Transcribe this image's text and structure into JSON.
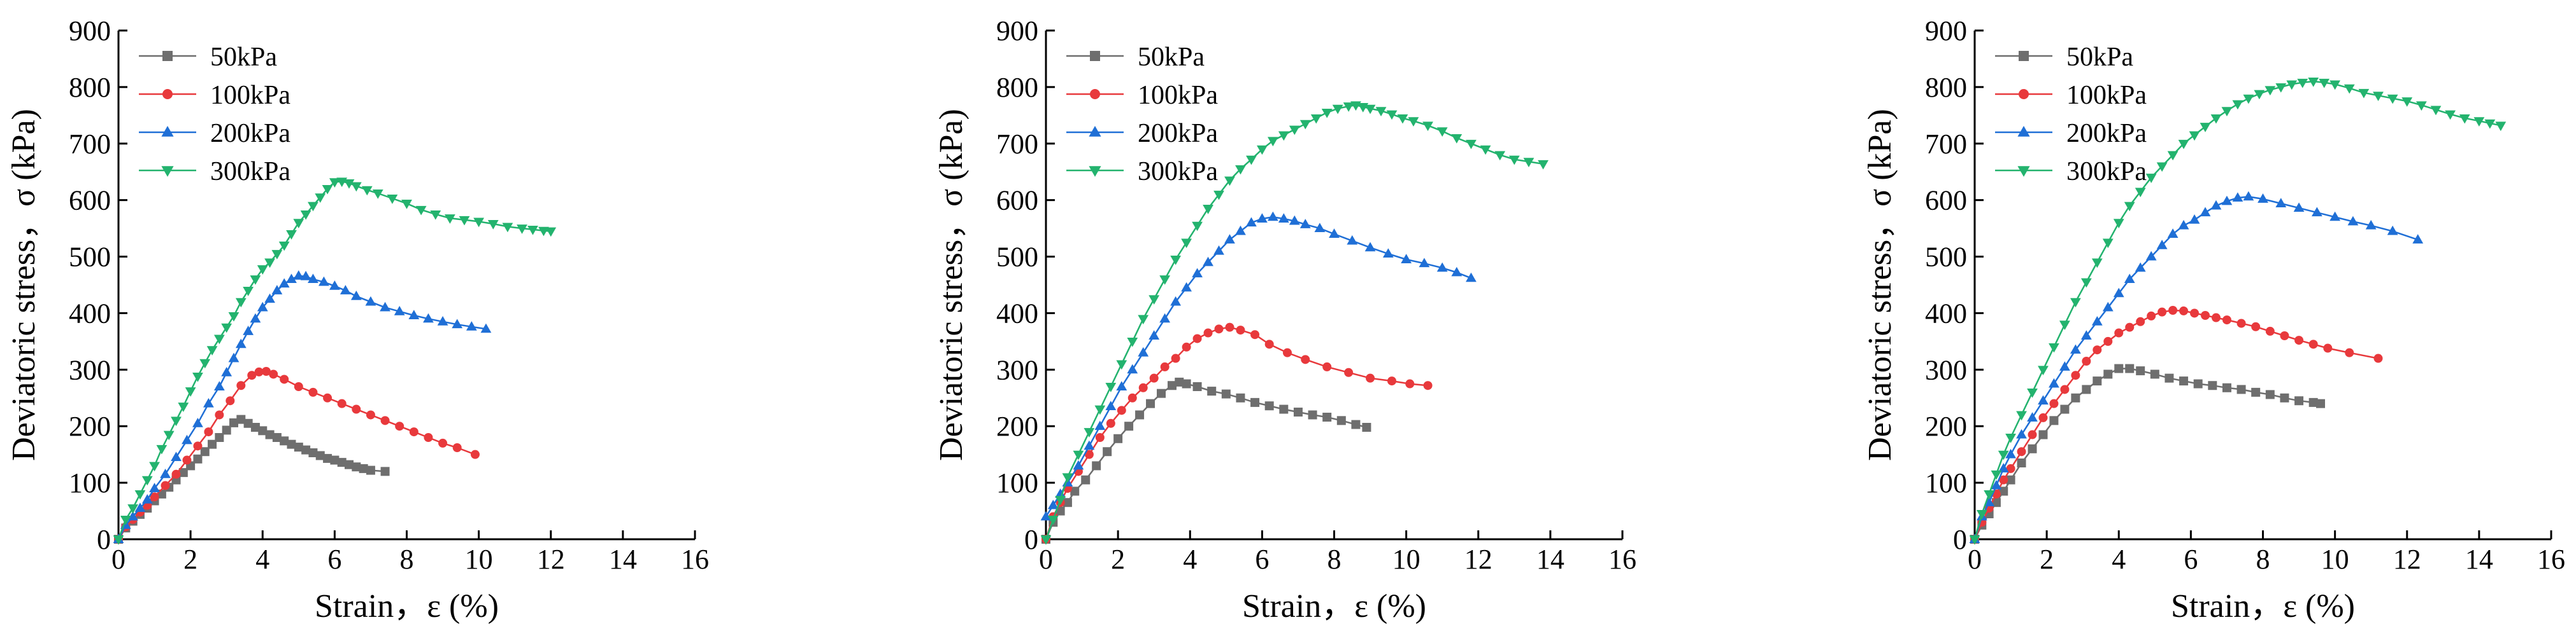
{
  "chart_data": [
    {
      "type": "line",
      "title": "",
      "xlabel": "Strain，ε (%)",
      "ylabel": "Deviatoric stress，σ (kPa)",
      "xlim": [
        0,
        16
      ],
      "ylim": [
        0,
        900
      ],
      "xticks": [
        "0",
        "2",
        "4",
        "6",
        "8",
        "10",
        "12",
        "14",
        "16"
      ],
      "yticks": [
        "0",
        "100",
        "200",
        "300",
        "400",
        "500",
        "600",
        "700",
        "800",
        "900"
      ],
      "legend_position": "top-left",
      "series": [
        {
          "name": "50kPa",
          "color": "#6e6e6e",
          "marker": "square",
          "x": [
            0,
            0.2,
            0.4,
            0.6,
            0.8,
            1.0,
            1.2,
            1.4,
            1.6,
            1.8,
            2.0,
            2.2,
            2.4,
            2.6,
            2.8,
            3.0,
            3.2,
            3.4,
            3.6,
            3.8,
            4.0,
            4.2,
            4.4,
            4.6,
            4.8,
            5.0,
            5.2,
            5.4,
            5.6,
            5.8,
            6.0,
            6.2,
            6.4,
            6.6,
            6.8,
            7.0,
            7.4
          ],
          "y": [
            0,
            20,
            32,
            44,
            55,
            68,
            80,
            92,
            105,
            118,
            130,
            142,
            155,
            168,
            180,
            193,
            206,
            212,
            205,
            198,
            192,
            185,
            180,
            174,
            168,
            163,
            158,
            153,
            148,
            143,
            140,
            136,
            132,
            128,
            125,
            122,
            120
          ]
        },
        {
          "name": "100kPa",
          "color": "#e8393c",
          "marker": "circle",
          "x": [
            0,
            0.2,
            0.4,
            0.6,
            0.8,
            1.0,
            1.3,
            1.6,
            1.9,
            2.2,
            2.5,
            2.8,
            3.1,
            3.4,
            3.7,
            3.9,
            4.1,
            4.3,
            4.6,
            5.0,
            5.4,
            5.8,
            6.2,
            6.6,
            7.0,
            7.4,
            7.8,
            8.2,
            8.6,
            9.0,
            9.4,
            9.9
          ],
          "y": [
            0,
            22,
            35,
            48,
            60,
            75,
            95,
            115,
            140,
            165,
            190,
            220,
            245,
            272,
            290,
            296,
            297,
            292,
            283,
            270,
            260,
            250,
            240,
            230,
            220,
            210,
            200,
            190,
            180,
            170,
            162,
            150
          ]
        },
        {
          "name": "200kPa",
          "color": "#1f6fd6",
          "marker": "triangle-up",
          "x": [
            0,
            0.2,
            0.4,
            0.6,
            0.8,
            1.0,
            1.3,
            1.6,
            1.9,
            2.2,
            2.5,
            2.8,
            3.0,
            3.2,
            3.4,
            3.6,
            3.8,
            4.0,
            4.2,
            4.4,
            4.6,
            4.8,
            5.0,
            5.2,
            5.4,
            5.7,
            6.0,
            6.3,
            6.6,
            7.0,
            7.4,
            7.8,
            8.2,
            8.6,
            9.0,
            9.4,
            9.8,
            10.2
          ],
          "y": [
            0,
            25,
            40,
            55,
            70,
            90,
            115,
            145,
            175,
            205,
            240,
            270,
            295,
            320,
            345,
            368,
            390,
            410,
            425,
            440,
            452,
            460,
            466,
            465,
            460,
            455,
            448,
            440,
            430,
            420,
            410,
            403,
            396,
            390,
            385,
            380,
            376,
            372
          ]
        },
        {
          "name": "300kPa",
          "color": "#23b36e",
          "marker": "triangle-down",
          "x": [
            0,
            0.2,
            0.4,
            0.6,
            0.8,
            1.0,
            1.2,
            1.4,
            1.6,
            1.8,
            2.0,
            2.2,
            2.4,
            2.6,
            2.8,
            3.0,
            3.2,
            3.4,
            3.6,
            3.8,
            4.0,
            4.2,
            4.4,
            4.6,
            4.8,
            5.0,
            5.2,
            5.4,
            5.6,
            5.8,
            6.0,
            6.2,
            6.4,
            6.6,
            6.9,
            7.2,
            7.6,
            8.0,
            8.4,
            8.8,
            9.2,
            9.6,
            10.0,
            10.4,
            10.8,
            11.2,
            11.5,
            11.8,
            12.0
          ],
          "y": [
            0,
            35,
            55,
            80,
            105,
            130,
            160,
            185,
            210,
            235,
            262,
            288,
            312,
            335,
            355,
            375,
            395,
            420,
            440,
            460,
            478,
            490,
            505,
            520,
            540,
            560,
            575,
            590,
            605,
            620,
            632,
            633,
            630,
            625,
            618,
            612,
            603,
            594,
            583,
            575,
            568,
            565,
            562,
            558,
            553,
            550,
            548,
            546,
            545
          ]
        }
      ]
    },
    {
      "type": "line",
      "title": "",
      "xlabel": "Strain，ε (%)",
      "ylabel": "Deviatoric stress，σ (kPa)",
      "xlim": [
        0,
        16
      ],
      "ylim": [
        0,
        900
      ],
      "xticks": [
        "0",
        "2",
        "4",
        "6",
        "8",
        "10",
        "12",
        "14",
        "16"
      ],
      "yticks": [
        "0",
        "100",
        "200",
        "300",
        "400",
        "500",
        "600",
        "700",
        "800",
        "900"
      ],
      "legend_position": "top-left",
      "series": [
        {
          "name": "50kPa",
          "color": "#6e6e6e",
          "marker": "square",
          "x": [
            0,
            0.2,
            0.4,
            0.6,
            0.8,
            1.1,
            1.4,
            1.7,
            2.0,
            2.3,
            2.6,
            2.9,
            3.2,
            3.5,
            3.7,
            3.9,
            4.2,
            4.6,
            5.0,
            5.4,
            5.8,
            6.2,
            6.6,
            7.0,
            7.4,
            7.8,
            8.2,
            8.6,
            8.9
          ],
          "y": [
            0,
            30,
            50,
            65,
            85,
            105,
            130,
            155,
            178,
            200,
            220,
            240,
            258,
            272,
            278,
            275,
            270,
            262,
            257,
            250,
            242,
            236,
            230,
            225,
            220,
            216,
            210,
            203,
            198
          ]
        },
        {
          "name": "100kPa",
          "color": "#e8393c",
          "marker": "circle",
          "x": [
            0,
            0.2,
            0.4,
            0.6,
            0.9,
            1.2,
            1.5,
            1.8,
            2.1,
            2.4,
            2.7,
            3.0,
            3.3,
            3.6,
            3.9,
            4.2,
            4.5,
            4.8,
            5.1,
            5.4,
            5.8,
            6.2,
            6.7,
            7.2,
            7.8,
            8.4,
            9.0,
            9.6,
            10.1,
            10.6
          ],
          "y": [
            0,
            40,
            65,
            90,
            120,
            150,
            180,
            205,
            228,
            250,
            268,
            285,
            305,
            320,
            340,
            355,
            365,
            372,
            375,
            370,
            362,
            345,
            330,
            318,
            305,
            295,
            285,
            280,
            275,
            272
          ]
        },
        {
          "name": "200kPa",
          "color": "#1f6fd6",
          "marker": "triangle-up",
          "x": [
            0,
            0.2,
            0.4,
            0.6,
            0.9,
            1.2,
            1.5,
            1.8,
            2.1,
            2.4,
            2.7,
            3.0,
            3.3,
            3.6,
            3.9,
            4.2,
            4.5,
            4.8,
            5.1,
            5.4,
            5.7,
            6.0,
            6.3,
            6.6,
            6.9,
            7.2,
            7.6,
            8.0,
            8.5,
            9.0,
            9.5,
            10.0,
            10.5,
            11.0,
            11.4,
            11.8
          ],
          "y": [
            40,
            60,
            80,
            100,
            130,
            165,
            200,
            235,
            270,
            300,
            330,
            360,
            390,
            420,
            445,
            470,
            490,
            510,
            530,
            545,
            560,
            567,
            570,
            567,
            563,
            557,
            550,
            540,
            528,
            516,
            505,
            495,
            488,
            480,
            472,
            462
          ]
        },
        {
          "name": "300kPa",
          "color": "#23b36e",
          "marker": "triangle-down",
          "x": [
            0,
            0.2,
            0.4,
            0.6,
            0.9,
            1.2,
            1.5,
            1.8,
            2.1,
            2.4,
            2.7,
            3.0,
            3.3,
            3.6,
            3.9,
            4.2,
            4.5,
            4.8,
            5.1,
            5.4,
            5.7,
            6.0,
            6.3,
            6.6,
            6.9,
            7.2,
            7.5,
            7.8,
            8.1,
            8.4,
            8.6,
            8.8,
            9.0,
            9.3,
            9.6,
            9.9,
            10.2,
            10.6,
            11.0,
            11.4,
            11.8,
            12.2,
            12.6,
            13.0,
            13.4,
            13.8
          ],
          "y": [
            0,
            35,
            70,
            110,
            150,
            190,
            230,
            270,
            310,
            350,
            390,
            425,
            460,
            495,
            525,
            555,
            585,
            610,
            635,
            655,
            672,
            690,
            705,
            715,
            725,
            735,
            745,
            755,
            762,
            766,
            768,
            765,
            762,
            758,
            752,
            745,
            740,
            732,
            722,
            710,
            700,
            690,
            680,
            672,
            668,
            664
          ]
        }
      ]
    },
    {
      "type": "line",
      "title": "",
      "xlabel": "Strain，ε (%)",
      "ylabel": "Deviatoric stress，σ (kPa)",
      "xlim": [
        0,
        16
      ],
      "ylim": [
        0,
        900
      ],
      "xticks": [
        "0",
        "2",
        "4",
        "6",
        "8",
        "10",
        "12",
        "14",
        "16"
      ],
      "yticks": [
        "0",
        "100",
        "200",
        "300",
        "400",
        "500",
        "600",
        "700",
        "800",
        "900"
      ],
      "legend_position": "top-left",
      "series": [
        {
          "name": "50kPa",
          "color": "#6e6e6e",
          "marker": "square",
          "x": [
            0,
            0.2,
            0.4,
            0.6,
            0.8,
            1.0,
            1.3,
            1.6,
            1.9,
            2.2,
            2.5,
            2.8,
            3.1,
            3.4,
            3.7,
            4.0,
            4.3,
            4.6,
            5.0,
            5.4,
            5.8,
            6.2,
            6.6,
            7.0,
            7.4,
            7.8,
            8.2,
            8.6,
            9.0,
            9.4,
            9.6
          ],
          "y": [
            0,
            25,
            45,
            65,
            85,
            105,
            135,
            160,
            185,
            210,
            230,
            250,
            265,
            280,
            292,
            302,
            302,
            298,
            292,
            285,
            280,
            275,
            272,
            268,
            265,
            260,
            256,
            250,
            245,
            242,
            240
          ]
        },
        {
          "name": "100kPa",
          "color": "#e8393c",
          "marker": "circle",
          "x": [
            0,
            0.2,
            0.4,
            0.6,
            0.8,
            1.0,
            1.3,
            1.6,
            1.9,
            2.2,
            2.5,
            2.8,
            3.1,
            3.4,
            3.7,
            4.0,
            4.3,
            4.6,
            4.9,
            5.2,
            5.5,
            5.8,
            6.1,
            6.4,
            6.7,
            7.0,
            7.4,
            7.8,
            8.2,
            8.6,
            9.0,
            9.4,
            9.8,
            10.4,
            11.2
          ],
          "y": [
            0,
            30,
            55,
            80,
            105,
            125,
            155,
            185,
            215,
            240,
            265,
            290,
            315,
            335,
            350,
            365,
            375,
            385,
            395,
            402,
            405,
            404,
            400,
            396,
            392,
            388,
            382,
            376,
            368,
            360,
            352,
            345,
            338,
            330,
            320
          ]
        },
        {
          "name": "200kPa",
          "color": "#1f6fd6",
          "marker": "triangle-up",
          "x": [
            0,
            0.2,
            0.4,
            0.6,
            0.8,
            1.0,
            1.3,
            1.6,
            1.9,
            2.2,
            2.5,
            2.8,
            3.1,
            3.4,
            3.7,
            4.0,
            4.3,
            4.6,
            4.9,
            5.2,
            5.5,
            5.8,
            6.1,
            6.4,
            6.7,
            7.0,
            7.3,
            7.6,
            8.0,
            8.5,
            9.0,
            9.5,
            10.0,
            10.5,
            11.0,
            11.6,
            12.3
          ],
          "y": [
            0,
            40,
            65,
            95,
            125,
            150,
            185,
            215,
            245,
            275,
            305,
            335,
            360,
            385,
            410,
            435,
            460,
            480,
            500,
            520,
            540,
            555,
            565,
            578,
            590,
            598,
            604,
            606,
            602,
            594,
            586,
            578,
            570,
            562,
            555,
            545,
            530
          ]
        },
        {
          "name": "300kPa",
          "color": "#23b36e",
          "marker": "triangle-down",
          "x": [
            0,
            0.2,
            0.4,
            0.6,
            0.8,
            1.0,
            1.3,
            1.6,
            1.9,
            2.2,
            2.5,
            2.8,
            3.1,
            3.4,
            3.7,
            4.0,
            4.3,
            4.6,
            4.9,
            5.2,
            5.5,
            5.8,
            6.1,
            6.4,
            6.7,
            7.0,
            7.3,
            7.6,
            7.9,
            8.2,
            8.5,
            8.8,
            9.1,
            9.4,
            9.7,
            10.0,
            10.4,
            10.8,
            11.2,
            11.6,
            12.0,
            12.4,
            12.8,
            13.2,
            13.6,
            14.0,
            14.3,
            14.6
          ],
          "y": [
            0,
            45,
            80,
            115,
            150,
            180,
            220,
            260,
            300,
            340,
            380,
            420,
            455,
            490,
            525,
            560,
            590,
            615,
            640,
            660,
            680,
            700,
            715,
            730,
            745,
            758,
            770,
            780,
            788,
            795,
            800,
            805,
            808,
            810,
            808,
            805,
            798,
            790,
            785,
            780,
            775,
            768,
            760,
            752,
            745,
            740,
            736,
            732
          ]
        }
      ]
    }
  ]
}
